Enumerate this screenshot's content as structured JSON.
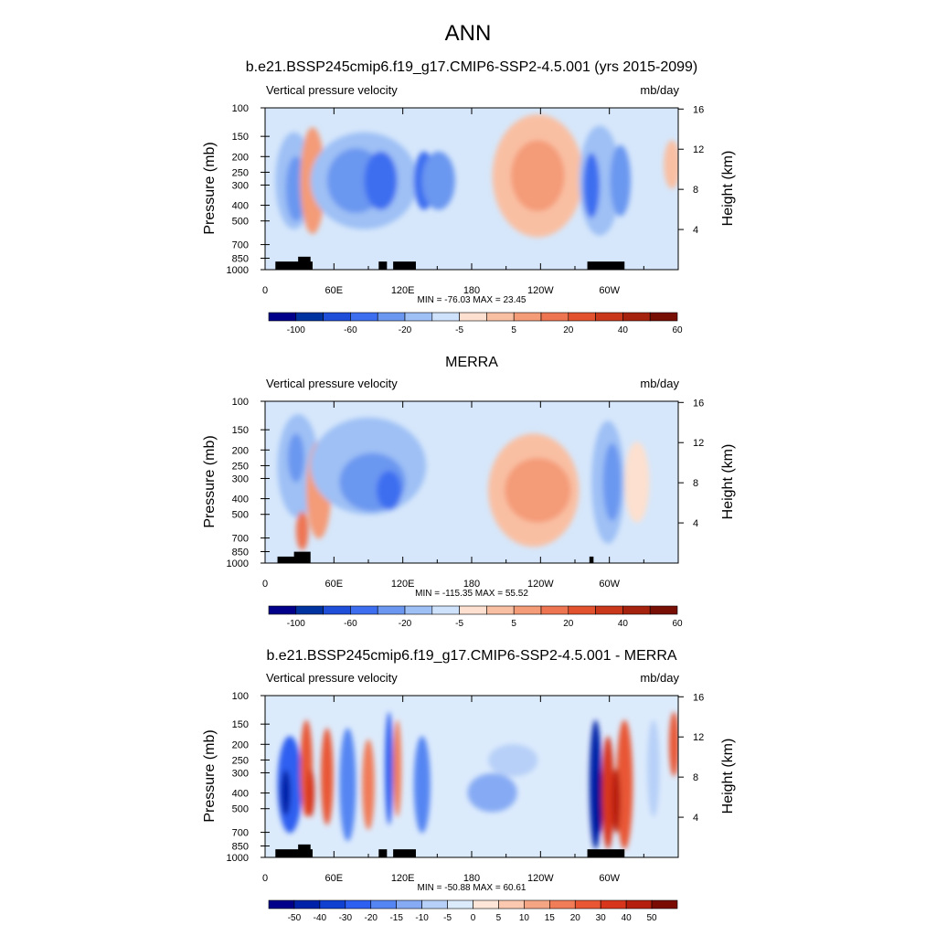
{
  "figure_title": "ANN",
  "chart_data": [
    {
      "type": "heatmap",
      "title": "b.e21.BSSP245cmip6.f19_g17.CMIP6-SSP2-4.5.001 (yrs 2015-2099)",
      "left_label": "Vertical pressure velocity",
      "units": "mb/day",
      "ylabel": "Pressure (mb)",
      "ylabel_right": "Height (km)",
      "yticks": [
        "100",
        "150",
        "200",
        "250",
        "300",
        "400",
        "500",
        "700",
        "850",
        "1000"
      ],
      "yticks_right": [
        "16",
        "12",
        "8",
        "4"
      ],
      "xticks": [
        "0",
        "60E",
        "120E",
        "180",
        "120W",
        "60W"
      ],
      "stats": "MIN = -76.03  MAX =  23.45",
      "colorbar_labels": [
        "-100",
        "-60",
        "-20",
        "-5",
        "5",
        "20",
        "40",
        "60"
      ],
      "colorbar_colors": [
        "#00008b",
        "#0033a0",
        "#1f4fd9",
        "#3d6ef0",
        "#6b97f0",
        "#9ec0f5",
        "#cfe2fb",
        "#fde0cf",
        "#f9bfa3",
        "#f49b78",
        "#ee7552",
        "#e3522e",
        "#c9381a",
        "#a5220f",
        "#780f04"
      ]
    },
    {
      "type": "heatmap",
      "title": "MERRA",
      "left_label": "Vertical pressure velocity",
      "units": "mb/day",
      "ylabel": "Pressure (mb)",
      "ylabel_right": "Height (km)",
      "yticks": [
        "100",
        "150",
        "200",
        "250",
        "300",
        "400",
        "500",
        "700",
        "850",
        "1000"
      ],
      "yticks_right": [
        "16",
        "12",
        "8",
        "4"
      ],
      "xticks": [
        "0",
        "60E",
        "120E",
        "180",
        "120W",
        "60W"
      ],
      "stats": "MIN = -115.35  MAX =  55.52",
      "colorbar_labels": [
        "-100",
        "-60",
        "-20",
        "-5",
        "5",
        "20",
        "40",
        "60"
      ],
      "colorbar_colors": [
        "#00008b",
        "#0033a0",
        "#1f4fd9",
        "#3d6ef0",
        "#6b97f0",
        "#9ec0f5",
        "#cfe2fb",
        "#fde0cf",
        "#f9bfa3",
        "#f49b78",
        "#ee7552",
        "#e3522e",
        "#c9381a",
        "#a5220f",
        "#780f04"
      ]
    },
    {
      "type": "heatmap",
      "title": "b.e21.BSSP245cmip6.f19_g17.CMIP6-SSP2-4.5.001 - MERRA",
      "left_label": "Vertical pressure velocity",
      "units": "mb/day",
      "ylabel": "Pressure (mb)",
      "ylabel_right": "Height (km)",
      "yticks": [
        "100",
        "150",
        "200",
        "250",
        "300",
        "400",
        "500",
        "700",
        "850",
        "1000"
      ],
      "yticks_right": [
        "16",
        "12",
        "8",
        "4"
      ],
      "xticks": [
        "0",
        "60E",
        "120E",
        "180",
        "120W",
        "60W"
      ],
      "stats": "MIN = -50.88  MAX =  60.61",
      "colorbar_labels": [
        "-50",
        "-40",
        "-30",
        "-20",
        "-15",
        "-10",
        "-5",
        "0",
        "5",
        "10",
        "15",
        "20",
        "30",
        "40",
        "50"
      ],
      "colorbar_colors": [
        "#00008b",
        "#0022a8",
        "#1040d0",
        "#2d5ff0",
        "#5585f2",
        "#86aaf4",
        "#b7d0f8",
        "#dcebfc",
        "#fde6d8",
        "#fbc9b0",
        "#f6a584",
        "#f07c58",
        "#e85634",
        "#d8361c",
        "#b51f0e",
        "#7a0b03"
      ]
    }
  ]
}
